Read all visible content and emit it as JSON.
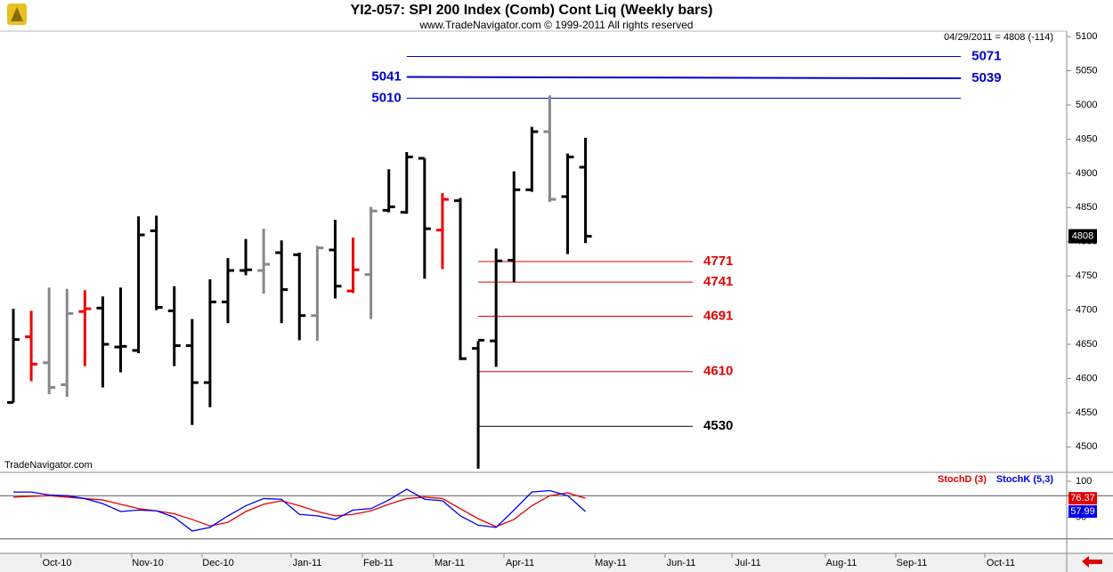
{
  "chart_data": [
    {
      "type": "ohlc",
      "title": "YI2-057:  SPI 200 Index (Comb) Cont Liq  (Weekly bars)",
      "subtitle": "www.TradeNavigator.com © 1999-2011 All rights reserved",
      "status": "04/29/2011 = 4808 (-114)",
      "watermark": "TradeNavigator.com",
      "open": [
        4565,
        4661,
        4623,
        4591,
        4698,
        4703,
        4646,
        4641,
        4816,
        4699,
        4648,
        4594,
        4712,
        4758,
        4758,
        4784,
        4781,
        4692,
        4788,
        4728,
        4752,
        4846,
        4843,
        4922,
        4817,
        4860,
        4644,
        4655,
        4773,
        4876,
        4961,
        4866,
        4909
      ],
      "high": [
        4702,
        4699,
        4733,
        4731,
        4729,
        4720,
        4733,
        4837,
        4838,
        4735,
        4687,
        4745,
        4776,
        4804,
        4819,
        4802,
        4784,
        4794,
        4832,
        4806,
        4851,
        4906,
        4931,
        4922,
        4871,
        4864,
        4655,
        4790,
        4903,
        4968,
        5014,
        4929,
        4952
      ],
      "low": [
        4565,
        4596,
        4577,
        4573,
        4618,
        4587,
        4609,
        4637,
        4700,
        4618,
        4532,
        4558,
        4681,
        4751,
        4724,
        4681,
        4656,
        4655,
        4717,
        4725,
        4687,
        4843,
        4841,
        4746,
        4760,
        4627,
        4468,
        4617,
        4741,
        4873,
        4858,
        4782,
        4798
      ],
      "close": [
        4657,
        4621,
        4587,
        4695,
        4702,
        4650,
        4647,
        4810,
        4704,
        4648,
        4594,
        4712,
        4758,
        4759,
        4767,
        4730,
        4692,
        4791,
        4735,
        4759,
        4845,
        4851,
        4924,
        4819,
        4862,
        4629,
        4656,
        4772,
        4876,
        4961,
        4862,
        4924,
        4808
      ],
      "colors": [
        "#000",
        "#e00",
        "#888",
        "#888",
        "#e00",
        "#000",
        "#000",
        "#000",
        "#000",
        "#000",
        "#000",
        "#000",
        "#000",
        "#000",
        "#888",
        "#000",
        "#000",
        "#888",
        "#000",
        "#e00",
        "#888",
        "#000",
        "#000",
        "#000",
        "#e00",
        "#000",
        "#000",
        "#000",
        "#000",
        "#000",
        "#888",
        "#000",
        "#000"
      ],
      "ylim": [
        4464,
        5108
      ],
      "yticks": [
        4500,
        4550,
        4600,
        4650,
        4700,
        4750,
        4800,
        4850,
        4900,
        4950,
        5000,
        5050,
        5100
      ],
      "levels": [
        {
          "value": 5071,
          "color": "#0000cc",
          "label_pos": "right",
          "start_week": 22,
          "end_week": 53
        },
        {
          "value": 5041,
          "end_value": 5039,
          "color": "#0000cc",
          "label_pos": "both",
          "start_week": 22,
          "end_week": 53
        },
        {
          "value": 5010,
          "color": "#0000cc",
          "label_pos": "left",
          "start_week": 22,
          "end_week": 53
        },
        {
          "value": 4771,
          "color": "#e00000",
          "label_pos": "right",
          "start_week": 26,
          "end_week": 38
        },
        {
          "value": 4741,
          "color": "#e00000",
          "label_pos": "right",
          "start_week": 26,
          "end_week": 38
        },
        {
          "value": 4691,
          "color": "#e00000",
          "label_pos": "right",
          "start_week": 26,
          "end_week": 38
        },
        {
          "value": 4610,
          "color": "#e00000",
          "label_pos": "right",
          "start_week": 26,
          "end_week": 38
        },
        {
          "value": 4530,
          "color": "#000000",
          "label_pos": "right",
          "start_week": 26,
          "end_week": 38
        }
      ]
    },
    {
      "type": "line",
      "x_labels": [
        "Oct-10",
        "Nov-10",
        "Dec-10",
        "Jan-11",
        "Feb-11",
        "Mar-11",
        "Apr-11",
        "May-11",
        "Jun-11",
        "Jul-11",
        "Aug-11",
        "Sep-11",
        "Oct-11"
      ],
      "series": [
        {
          "name": "StochD (3)",
          "color": "#e00000",
          "values": [
            78,
            79,
            80,
            78,
            76,
            74,
            68,
            62,
            59,
            55,
            47,
            38,
            43,
            58,
            68,
            73,
            66,
            58,
            52,
            54,
            59,
            68,
            76,
            78,
            76,
            62,
            48,
            37,
            47,
            66,
            80,
            84,
            76.37
          ]
        },
        {
          "name": "StochK (5,3)",
          "color": "#0000ee",
          "values": [
            85,
            85,
            81,
            80,
            76,
            69,
            58,
            60,
            59,
            50,
            31,
            36,
            52,
            66,
            76,
            75,
            54,
            52,
            47,
            60,
            62,
            74,
            89,
            75,
            73,
            52,
            39,
            36,
            60,
            85,
            87,
            80,
            57.99
          ]
        }
      ],
      "ylim": [
        0,
        100
      ],
      "yticks": [
        50,
        100
      ],
      "hlines": [
        80,
        20
      ]
    }
  ]
}
